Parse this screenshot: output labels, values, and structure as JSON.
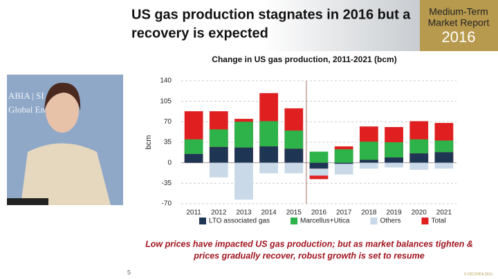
{
  "slide": {
    "title_lines": [
      "US gas production stagnates in 2016 but a",
      "recovery is expected"
    ],
    "banner_lines": [
      "Medium-Term",
      "Market Report",
      "2016"
    ],
    "video_text": [
      "ABIA | SI",
      "Global Ene"
    ],
    "caption_lines": [
      "Low prices have impacted US gas production; but as market balances tighten &",
      "prices gradually recover, robust growth is set to resume"
    ],
    "page_number": "5",
    "copyright": "© OECD/IEA 2016"
  },
  "chart_data": {
    "type": "bar",
    "stacked": true,
    "title": "Change in US gas production, 2011-2021 (bcm)",
    "y_label": "bcm",
    "categories": [
      "2011",
      "2012",
      "2013",
      "2014",
      "2015",
      "2016",
      "2017",
      "2018",
      "2019",
      "2020",
      "2021"
    ],
    "series": [
      {
        "name": "LTO associated gas",
        "color": "#1f3554",
        "values": [
          15,
          27,
          26,
          28,
          24,
          -10,
          -2,
          5,
          9,
          16,
          18
        ]
      },
      {
        "name": "Marcellus+Utica",
        "color": "#2db34a",
        "values": [
          25,
          30,
          44,
          43,
          31,
          19,
          23,
          31,
          26,
          24,
          20
        ]
      },
      {
        "name": "Others",
        "color": "#c9d9e8",
        "values": [
          0,
          -25,
          -63,
          -18,
          -18,
          -12,
          -18,
          -10,
          -8,
          -12,
          -10
        ]
      },
      {
        "name": "Total",
        "color": "#e02020",
        "draw": "behind",
        "values": [
          88,
          88,
          75,
          119,
          93,
          -28,
          28,
          62,
          61,
          71,
          68
        ]
      }
    ],
    "ylim": [
      -70,
      140
    ],
    "yticks": [
      -70,
      -35,
      0,
      35,
      70,
      105,
      140
    ],
    "grid": true,
    "legend": "bottom"
  }
}
